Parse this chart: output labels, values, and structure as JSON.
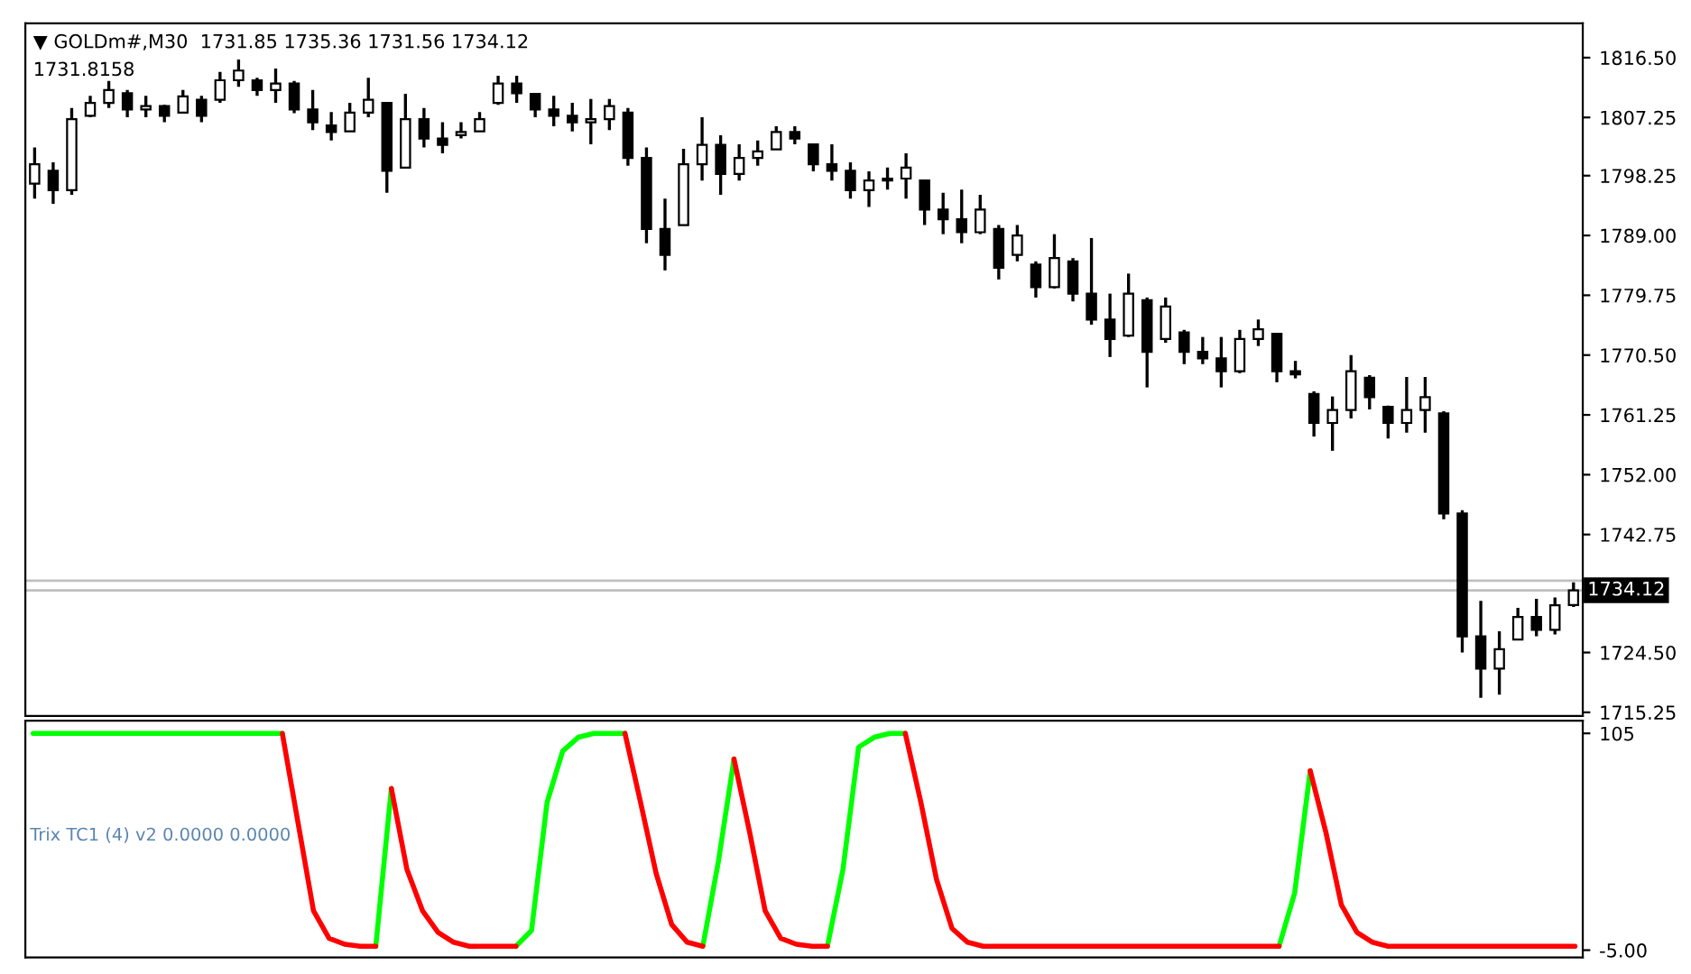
{
  "chart_data": [
    {
      "type": "candlestick",
      "title": "▼ GOLDm#,M30  1731.85 1735.36 1731.56 1734.12",
      "annotations": [
        "1731.8158"
      ],
      "color": "#000000",
      "tick_labels": "y",
      "categories": [
        null,
        null,
        null,
        null,
        null,
        null,
        null,
        null,
        null,
        null,
        null,
        null,
        null,
        null,
        null,
        null,
        null,
        null,
        null,
        null,
        null,
        null,
        null,
        null,
        null,
        null,
        null,
        null,
        null,
        null,
        null,
        null,
        null,
        null,
        null,
        null,
        null,
        null,
        null,
        null,
        null,
        null,
        null,
        null,
        null,
        null,
        null,
        null,
        null,
        null,
        null,
        null,
        null,
        null,
        null,
        null,
        null,
        null,
        null,
        null,
        null,
        null,
        null,
        null,
        null,
        null,
        null,
        null,
        null,
        null,
        null,
        null,
        null,
        null,
        null,
        null,
        null,
        null,
        null,
        null,
        null,
        null,
        null,
        null
      ],
      "ohlc": [
        [
          1797,
          1802.6,
          1794.7,
          1800
        ],
        [
          1799,
          1800.3,
          1793.9,
          1796
        ],
        [
          1796,
          1808.7,
          1795.3,
          1807
        ],
        [
          1807.5,
          1810.6,
          1807.3,
          1809.5
        ],
        [
          1809.5,
          1812.9,
          1808.7,
          1811.5
        ],
        [
          1811,
          1811.5,
          1807.3,
          1808.5
        ],
        [
          1808.5,
          1810.6,
          1807.3,
          1809
        ],
        [
          1809,
          1809.2,
          1806.5,
          1807.5
        ],
        [
          1808,
          1811.5,
          1807.9,
          1810.5
        ],
        [
          1810,
          1810.6,
          1806.5,
          1807.5
        ],
        [
          1810,
          1814.3,
          1809.5,
          1813
        ],
        [
          1813,
          1816.2,
          1812,
          1814.5
        ],
        [
          1813,
          1813.4,
          1810.6,
          1811.5
        ],
        [
          1811.5,
          1814.8,
          1809.5,
          1812.5
        ],
        [
          1812.5,
          1812.9,
          1807.9,
          1808.5
        ],
        [
          1808.5,
          1811.5,
          1805.3,
          1806.5
        ],
        [
          1806,
          1808.1,
          1803.7,
          1805
        ],
        [
          1805.1,
          1809.5,
          1805.1,
          1808
        ],
        [
          1808,
          1813.4,
          1807.3,
          1810
        ],
        [
          1809.5,
          1809.5,
          1795.6,
          1799
        ],
        [
          1799.5,
          1810.9,
          1799.5,
          1807
        ],
        [
          1807,
          1808.7,
          1802.6,
          1804
        ],
        [
          1804,
          1806.5,
          1801.7,
          1803
        ],
        [
          1804.5,
          1806.5,
          1804,
          1805
        ],
        [
          1805.1,
          1808.1,
          1805.1,
          1807
        ],
        [
          1809.5,
          1813.7,
          1809.2,
          1812.5
        ],
        [
          1812.5,
          1813.7,
          1809.5,
          1811
        ],
        [
          1810.9,
          1810.9,
          1807.3,
          1808.5
        ],
        [
          1808.5,
          1810.6,
          1805.9,
          1807.5
        ],
        [
          1807.5,
          1809.5,
          1805.1,
          1806.5
        ],
        [
          1806.5,
          1810.1,
          1803.1,
          1807
        ],
        [
          1807,
          1810.1,
          1805.3,
          1809
        ],
        [
          1808,
          1808.7,
          1799.8,
          1801
        ],
        [
          1801,
          1802.6,
          1787.8,
          1790
        ],
        [
          1790,
          1794.7,
          1783.6,
          1786
        ],
        [
          1790.6,
          1802.4,
          1790.6,
          1800
        ],
        [
          1800,
          1807.3,
          1797.5,
          1803
        ],
        [
          1803,
          1804.5,
          1795.3,
          1798.5
        ],
        [
          1798.5,
          1803.1,
          1797.5,
          1801
        ],
        [
          1801,
          1803.7,
          1799.8,
          1802
        ],
        [
          1802.3,
          1805.9,
          1802.3,
          1805
        ],
        [
          1805,
          1805.9,
          1803.1,
          1804
        ],
        [
          1803.1,
          1803.1,
          1798.9,
          1800
        ],
        [
          1800,
          1803.1,
          1797.5,
          1799
        ],
        [
          1799,
          1800.3,
          1794.7,
          1796
        ],
        [
          1796,
          1798.9,
          1793.4,
          1797.5
        ],
        [
          1797.5,
          1799.5,
          1796.1,
          1797.8
        ],
        [
          1797.8,
          1801.7,
          1794.7,
          1799.5
        ],
        [
          1797.5,
          1797.5,
          1790.6,
          1793
        ],
        [
          1793,
          1795.6,
          1789.2,
          1791.5
        ],
        [
          1791.5,
          1796.1,
          1787.8,
          1789.5
        ],
        [
          1789.5,
          1795.3,
          1789.2,
          1793
        ],
        [
          1790,
          1790.6,
          1782.2,
          1784
        ],
        [
          1786,
          1790.6,
          1785,
          1789
        ],
        [
          1784.5,
          1785,
          1779.4,
          1781
        ],
        [
          1781,
          1789.2,
          1780.8,
          1785.5
        ],
        [
          1785,
          1785.5,
          1778.8,
          1780
        ],
        [
          1780,
          1788.6,
          1775.2,
          1776
        ],
        [
          1776,
          1780,
          1770.2,
          1773
        ],
        [
          1773.5,
          1783.1,
          1773.3,
          1780
        ],
        [
          1779,
          1779.4,
          1765.5,
          1771
        ],
        [
          1773,
          1779.4,
          1772.4,
          1778
        ],
        [
          1774,
          1774.4,
          1769.1,
          1771
        ],
        [
          1771,
          1773.3,
          1769.1,
          1770
        ],
        [
          1770,
          1773.3,
          1765.5,
          1768
        ],
        [
          1768,
          1774.4,
          1767.7,
          1773
        ],
        [
          1773,
          1776,
          1771.9,
          1774.5
        ],
        [
          1773.8,
          1773.8,
          1766.3,
          1768
        ],
        [
          1768,
          1769.6,
          1766.9,
          1767.5
        ],
        [
          1764.5,
          1764.9,
          1757.9,
          1760
        ],
        [
          1760,
          1764.1,
          1755.7,
          1762
        ],
        [
          1762,
          1770.5,
          1760.7,
          1768
        ],
        [
          1767,
          1767.4,
          1762.1,
          1764
        ],
        [
          1762.5,
          1762.7,
          1757.6,
          1760
        ],
        [
          1760,
          1767.1,
          1758.5,
          1762
        ],
        [
          1762,
          1767.1,
          1758.5,
          1764
        ],
        [
          1761.5,
          1761.8,
          1745.1,
          1746
        ],
        [
          1746,
          1746.5,
          1724.5,
          1727
        ],
        [
          1727,
          1732.5,
          1717.5,
          1722
        ],
        [
          1722,
          1727.8,
          1718,
          1725
        ],
        [
          1726.5,
          1731.4,
          1726.4,
          1730
        ],
        [
          1730,
          1732.8,
          1727,
          1728
        ],
        [
          1728,
          1733,
          1727.3,
          1731.8
        ],
        [
          1731.85,
          1735.36,
          1731.56,
          1734.12
        ]
      ],
      "ylim": [
        1714.7,
        1821.8
      ],
      "yticks": [
        {
          "value": 1816.5,
          "label": "1816.50"
        },
        {
          "value": 1807.25,
          "label": "1807.25"
        },
        {
          "value": 1798.25,
          "label": "1798.25"
        },
        {
          "value": 1789,
          "label": "1789.00"
        },
        {
          "value": 1779.75,
          "label": "1779.75"
        },
        {
          "value": 1770.5,
          "label": "1770.50"
        },
        {
          "value": 1761.25,
          "label": "1761.25"
        },
        {
          "value": 1752,
          "label": "1752.00"
        },
        {
          "value": 1742.75,
          "label": "1742.75"
        },
        {
          "value": 1724.5,
          "label": "1724.50"
        },
        {
          "value": 1715.25,
          "label": "1715.25"
        }
      ],
      "ref_lines": [
        {
          "axis": "y",
          "value": 1735.6,
          "color": "#c0c0c0"
        },
        {
          "axis": "y",
          "value": 1734.12,
          "label": "1734.12",
          "color": "#c0c0c0"
        }
      ]
    },
    {
      "type": "line",
      "title": "Trix TC1 (4) v2 0.0000 0.0000",
      "tick_labels": "y",
      "categories": [
        null,
        null,
        null,
        null,
        null,
        null,
        null,
        null,
        null,
        null,
        null,
        null,
        null,
        null,
        null,
        null,
        null,
        null,
        null,
        null,
        null,
        null,
        null,
        null,
        null,
        null,
        null,
        null,
        null,
        null,
        null,
        null,
        null,
        null,
        null,
        null,
        null,
        null,
        null,
        null,
        null,
        null,
        null,
        null,
        null,
        null,
        null,
        null,
        null,
        null,
        null,
        null,
        null,
        null,
        null,
        null,
        null,
        null,
        null,
        null,
        null,
        null,
        null,
        null,
        null,
        null,
        null,
        null,
        null,
        null,
        null,
        null,
        null,
        null,
        null,
        null,
        null,
        null,
        null,
        null,
        null,
        null,
        null,
        null,
        null,
        null,
        null,
        null,
        null,
        null,
        null,
        null,
        null,
        null,
        null,
        null,
        null,
        null,
        null,
        null
      ],
      "series": [
        {
          "color": "#00ff00",
          "values": [
            105,
            105,
            105,
            105,
            105,
            105,
            105,
            105,
            105,
            105,
            105,
            105,
            105,
            105,
            105,
            105,
            105,
            null,
            null,
            null,
            null,
            null,
            -3,
            77,
            null,
            null,
            null,
            null,
            null,
            null,
            null,
            -3,
            5,
            70,
            96,
            103,
            105,
            105,
            105,
            null,
            null,
            null,
            null,
            -3,
            40,
            92,
            null,
            null,
            null,
            null,
            null,
            -3,
            36,
            98,
            103,
            105,
            105,
            null,
            null,
            null,
            null,
            null,
            null,
            null,
            null,
            null,
            null,
            null,
            null,
            null,
            null,
            null,
            null,
            null,
            null,
            null,
            null,
            null,
            null,
            null,
            -3,
            24,
            86,
            null,
            null,
            null,
            null,
            null,
            null,
            null,
            null,
            null,
            null,
            null,
            null,
            null,
            null,
            null,
            null,
            null
          ]
        },
        {
          "color": "#ff0000",
          "values": [
            null,
            null,
            null,
            null,
            null,
            null,
            null,
            null,
            null,
            null,
            null,
            null,
            null,
            null,
            null,
            null,
            105,
            60,
            15,
            1,
            -2,
            -3,
            -3,
            null,
            null,
            null,
            null,
            null,
            null,
            null,
            null,
            null,
            null,
            null,
            null,
            null,
            null,
            null,
            105,
            70,
            34,
            8,
            -1,
            -3,
            null,
            null,
            null,
            null,
            null,
            null,
            null,
            null,
            null,
            null,
            null,
            null,
            105,
            70,
            31,
            6,
            -1,
            -3,
            -3,
            -3,
            -3,
            -3,
            -3,
            -3,
            -3,
            -3,
            -3,
            -3,
            -3,
            -3,
            -3,
            -3,
            -3,
            -3,
            -3,
            -3,
            -3,
            null,
            null,
            null,
            null,
            null,
            null,
            null,
            null,
            null,
            null,
            null,
            null,
            null,
            null,
            null,
            null,
            null,
            null,
            null
          ]
        },
        {
          "color": "#ff0000",
          "values": [
            null,
            null,
            null,
            null,
            null,
            null,
            null,
            null,
            null,
            null,
            null,
            null,
            null,
            null,
            null,
            null,
            null,
            null,
            null,
            null,
            null,
            null,
            null,
            77,
            36,
            15,
            4,
            -1,
            -3,
            -3,
            -3,
            -3,
            null,
            null,
            null,
            null,
            null,
            null,
            null,
            null,
            null,
            null,
            null,
            null,
            null,
            92,
            55,
            15,
            1,
            -2,
            -3,
            -3,
            null,
            null,
            null,
            null,
            null,
            null,
            null,
            null,
            null,
            null,
            null,
            null,
            null,
            null,
            null,
            null,
            null,
            null,
            null,
            null,
            null,
            null,
            null,
            null,
            null,
            null,
            null,
            null,
            null,
            null,
            86,
            55,
            18,
            4,
            -1,
            -3,
            -3,
            -3,
            -3,
            -3,
            -3,
            -3,
            -3,
            -3,
            -3,
            -3,
            -3,
            -3
          ]
        }
      ],
      "ylim": [
        -8.7,
        111.4
      ],
      "yticks": [
        105,
        {
          "value": -5,
          "label": "-5.00"
        }
      ]
    }
  ]
}
